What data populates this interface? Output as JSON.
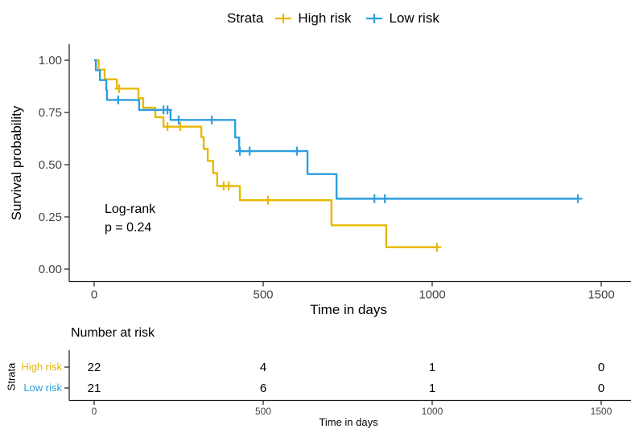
{
  "legend": {
    "title": "Strata"
  },
  "annotation": {
    "line1": "Log-rank",
    "line2": "p = 0.24"
  },
  "main_axes": {
    "x_label": "Time in days",
    "y_label": "Survival probability",
    "x_ticks": [
      0,
      500,
      1000,
      1500
    ],
    "y_ticks": [
      "0.00",
      "0.25",
      "0.50",
      "0.75",
      "1.00"
    ]
  },
  "chart_data": {
    "type": "line",
    "subtype": "kaplan-meier-step",
    "title": "",
    "xlabel": "Time in days",
    "ylabel": "Survival probability",
    "xlim": [
      0,
      1560
    ],
    "ylim": [
      0,
      1
    ],
    "grid": "off",
    "legend_position": "top",
    "series": [
      {
        "name": "High risk",
        "color": "#E7B800",
        "points": [
          [
            0,
            1.0
          ],
          [
            13,
            0.955
          ],
          [
            31,
            0.909
          ],
          [
            67,
            0.864
          ],
          [
            131,
            0.818
          ],
          [
            145,
            0.773
          ],
          [
            181,
            0.727
          ],
          [
            205,
            0.682
          ],
          [
            317,
            0.632
          ],
          [
            324,
            0.575
          ],
          [
            336,
            0.518
          ],
          [
            352,
            0.46
          ],
          [
            364,
            0.398
          ],
          [
            431,
            0.33
          ],
          [
            702,
            0.21
          ],
          [
            864,
            0.105
          ]
        ],
        "end_time": 1014,
        "censors": [
          [
            74,
            0.864
          ],
          [
            217,
            0.682
          ],
          [
            255,
            0.682
          ],
          [
            383,
            0.398
          ],
          [
            398,
            0.398
          ],
          [
            514,
            0.33
          ],
          [
            1014,
            0.105
          ]
        ]
      },
      {
        "name": "Low risk",
        "color": "#2E9FDF",
        "points": [
          [
            0,
            1.0
          ],
          [
            5,
            0.952
          ],
          [
            17,
            0.905
          ],
          [
            36,
            0.857
          ],
          [
            38,
            0.81
          ],
          [
            133,
            0.762
          ],
          [
            226,
            0.714
          ],
          [
            417,
            0.63
          ],
          [
            429,
            0.565
          ],
          [
            631,
            0.455
          ],
          [
            717,
            0.337
          ]
        ],
        "end_time": 1431,
        "censors": [
          [
            71,
            0.81
          ],
          [
            205,
            0.762
          ],
          [
            217,
            0.762
          ],
          [
            250,
            0.714
          ],
          [
            348,
            0.714
          ],
          [
            431,
            0.565
          ],
          [
            460,
            0.565
          ],
          [
            600,
            0.565
          ],
          [
            829,
            0.337
          ],
          [
            860,
            0.337
          ],
          [
            1431,
            0.337
          ]
        ]
      }
    ]
  },
  "risk_table": {
    "title": "Number at risk",
    "strata_label": "Strata",
    "x_label": "Time in days",
    "times": [
      0,
      500,
      1000,
      1500
    ],
    "rows": [
      {
        "label": "High risk",
        "color": "#E7B800",
        "values": [
          "22",
          "4",
          "1",
          "0"
        ]
      },
      {
        "label": "Low risk",
        "color": "#2E9FDF",
        "values": [
          "21",
          "6",
          "1",
          "0"
        ]
      }
    ]
  }
}
